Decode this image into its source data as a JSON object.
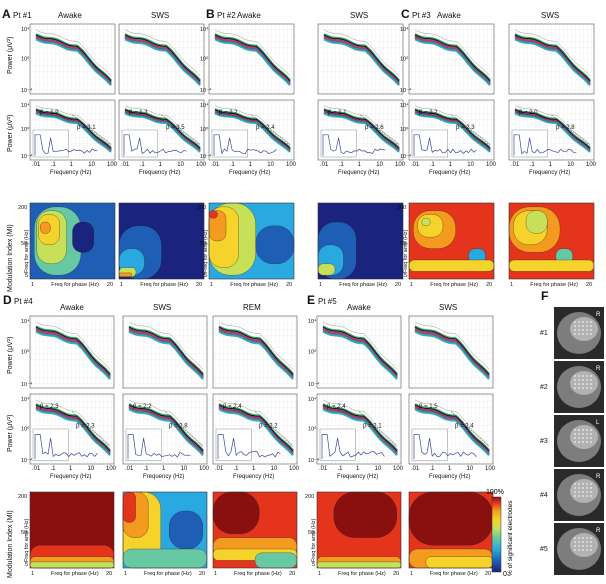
{
  "panels": [
    {
      "letter": "A",
      "patient": "Pt #1",
      "states": [
        "Awake",
        "SWS"
      ],
      "betas": [
        {
          "low": "β = 1.9",
          "high": "β = 3.1"
        },
        {
          "low": "β = 1.3",
          "high": "β = 3.5"
        }
      ],
      "heatmap_styles": [
        "awake_a",
        "sws_a"
      ]
    },
    {
      "letter": "B",
      "patient": "Pt #2",
      "states": [
        "Awake",
        "SWS"
      ],
      "betas": [
        {
          "low": "β = 2.2",
          "high": "β = 2.4"
        },
        {
          "low": "β = 1.1",
          "high": "β = 2.6"
        }
      ],
      "heatmap_styles": [
        "awake_b",
        "sws_b"
      ]
    },
    {
      "letter": "C",
      "patient": "Pt #3",
      "states": [
        "Awake",
        "SWS"
      ],
      "betas": [
        {
          "low": "β = 2.2",
          "high": "β = 2.3"
        },
        {
          "low": "β = 2.0",
          "high": "β = 2.8"
        }
      ],
      "heatmap_styles": [
        "hot_c",
        "hot_c2"
      ]
    },
    {
      "letter": "D",
      "patient": "Pt #4",
      "states": [
        "Awake",
        "SWS",
        "REM"
      ],
      "betas": [
        {
          "low": "β = 2.3",
          "high": "β = 2.3"
        },
        {
          "low": "β = 2.2",
          "high": "β = 2.8"
        },
        {
          "low": "β = 2.4",
          "high": "β = 2.2"
        }
      ],
      "heatmap_styles": [
        "dark_d",
        "sws_d",
        "rem_d"
      ]
    },
    {
      "letter": "E",
      "patient": "Pt #5",
      "states": [
        "Awake",
        "SWS"
      ],
      "betas": [
        {
          "low": "β = 2.4",
          "high": "β = 2.1"
        },
        {
          "low": "β = 1.5",
          "high": "β = 2.4"
        }
      ],
      "heatmap_styles": [
        "dark_e",
        "dark_e2"
      ]
    }
  ],
  "labels": {
    "power_axis": "Power (μV²)",
    "frequency_axis": "Frequency (Hz)",
    "mi_axis": "Modulation Index (MI)",
    "freq_amp": "Freq for amp (Hz)",
    "freq_phase": "Freq for phase (Hz)",
    "ytick_top": "10⁴",
    "ytick_mid": "10⁰",
    "ytick_bot": "10⁻⁴",
    "xticks": [
      ".01",
      ".1",
      "1",
      "10",
      "100"
    ],
    "amp_ticks": [
      "200",
      "50",
      "5"
    ],
    "phase_ticks": [
      "1",
      "20"
    ]
  },
  "colorbar": {
    "top": "100%",
    "bottom": "0",
    "label": "% of significant electrodes"
  },
  "xray": {
    "letter": "F",
    "items": [
      {
        "id": "#1",
        "side": "R"
      },
      {
        "id": "#2",
        "side": "R"
      },
      {
        "id": "#3",
        "side": "L"
      },
      {
        "id": "#4",
        "side": "R"
      },
      {
        "id": "#5",
        "side": "R"
      }
    ]
  },
  "palette": {
    "c0": "#1a237e",
    "c1": "#1e5fb5",
    "c2": "#29a9e0",
    "c3": "#66c9a4",
    "c4": "#c6e05a",
    "c5": "#f6d32b",
    "c6": "#f39a1f",
    "c7": "#e4341c",
    "c8": "#8a0f0f"
  }
}
